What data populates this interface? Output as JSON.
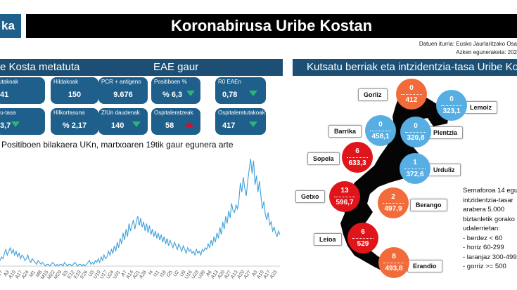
{
  "header": {
    "logo_text": "ka",
    "title": "Koronabirusa Uribe Kostan",
    "source": "Datuen iturria: Eusko Jaurlaritzako Osa",
    "updated": "Azken eguneraketa: 202"
  },
  "left_panel": {
    "title": "e Kosta metatuta",
    "tiles": [
      {
        "label": "utakoak",
        "value": "41"
      },
      {
        "label": "Hildakoak",
        "value": "150"
      },
      {
        "label": "tu-tasa",
        "value": "3,7",
        "trend": "down"
      },
      {
        "label": "Hilkortasuna",
        "value": "% 2,17"
      }
    ]
  },
  "eae_panel": {
    "title": "EAE gaur",
    "tiles": [
      {
        "label": "PCR + antigeno",
        "value": "9.676"
      },
      {
        "label": "Positiboen %",
        "value": "% 6,3",
        "trend": "down"
      },
      {
        "label": "R0 EAEn",
        "value": "0,78",
        "trend": "down"
      },
      {
        "label": "ZIUn daudenak",
        "value": "140",
        "trend": "down"
      },
      {
        "label": "Ospitaleratzeak",
        "value": "58",
        "trend": "up"
      },
      {
        "label": "Ospitaleratutakoak",
        "value": "417",
        "trend": "down"
      }
    ]
  },
  "chart_data": {
    "type": "line",
    "title": "Positiboen bilakaera UKn, martxoaren 19tik gaur egunera arte",
    "xlabel": "",
    "ylabel": "",
    "ylim": [
      0,
      60
    ],
    "color": "#3fa0d9",
    "x_ticks": [
      "M27",
      "A3",
      "A10",
      "A17",
      "A24",
      "M1",
      "M8",
      "M15",
      "M22",
      "M29",
      "E5",
      "E12",
      "E19",
      "E26",
      "U3",
      "U10",
      "U17",
      "U24",
      "U31",
      "A7",
      "A14",
      "A21",
      "A28",
      "I4",
      "I11",
      "I18",
      "I25",
      "U2",
      "U9",
      "U16",
      "U23",
      "U30",
      "A6",
      "A13",
      "A20",
      "A27",
      "A13",
      "A20",
      "A27",
      "A3",
      "A10",
      "A17",
      "A23"
    ],
    "values": [
      3,
      5,
      4,
      7,
      9,
      6,
      8,
      10,
      7,
      9,
      6,
      8,
      5,
      7,
      4,
      6,
      5,
      3,
      4,
      6,
      3,
      2,
      4,
      3,
      2,
      1,
      3,
      2,
      1,
      2,
      1,
      0,
      1,
      1,
      0,
      1,
      2,
      1,
      0,
      1,
      0,
      1,
      1,
      0,
      2,
      1,
      0,
      1,
      1,
      0,
      1,
      2,
      1,
      0,
      1,
      1,
      0,
      1,
      0,
      1,
      2,
      3,
      1,
      2,
      1,
      3,
      2,
      4,
      2,
      5,
      3,
      6,
      4,
      5,
      8,
      6,
      9,
      7,
      11,
      8,
      13,
      10,
      15,
      12,
      18,
      14,
      20,
      16,
      23,
      19,
      22,
      25,
      20,
      24,
      27,
      22,
      26,
      21,
      24,
      19,
      23,
      18,
      22,
      17,
      20,
      16,
      19,
      15,
      18,
      14,
      17,
      13,
      16,
      12,
      15,
      11,
      14,
      12,
      10,
      13,
      11,
      9,
      12,
      10,
      8,
      11,
      9,
      7,
      10,
      8,
      9,
      7,
      8,
      6,
      9,
      7,
      8,
      6,
      9,
      8,
      10,
      9,
      12,
      10,
      14,
      11,
      16,
      13,
      18,
      15,
      21,
      17,
      24,
      20,
      27,
      23,
      30,
      26,
      34,
      30,
      29,
      33,
      31,
      36,
      45,
      40,
      48,
      42,
      38,
      46,
      52,
      58,
      50,
      57,
      44,
      49,
      40,
      46,
      38,
      31,
      35,
      28,
      25,
      29,
      22,
      24,
      19,
      21,
      18,
      16,
      19,
      17
    ]
  },
  "map_panel": {
    "title": "Kutsatu berriak eta intzidentzia-tasa Uribe Ko",
    "towns": [
      {
        "name": "Gorliz",
        "new_cases": "0",
        "rate": "412",
        "color": "#f26b3a"
      },
      {
        "name": "Lemoiz",
        "new_cases": "0",
        "rate": "323,1",
        "color": "#56aee3"
      },
      {
        "name": "Barrika",
        "new_cases": "0",
        "rate": "458,1",
        "color": "#56aee3"
      },
      {
        "name": "Plentzia",
        "new_cases": "0",
        "rate": "320,8",
        "color": "#56aee3"
      },
      {
        "name": "Sopela",
        "new_cases": "6",
        "rate": "633,3",
        "color": "#e0151b"
      },
      {
        "name": "Urduliz",
        "new_cases": "1",
        "rate": "372,6",
        "color": "#56aee3"
      },
      {
        "name": "Getxo",
        "new_cases": "13",
        "rate": "596,7",
        "color": "#e0151b"
      },
      {
        "name": "Berango",
        "new_cases": "2",
        "rate": "497,9",
        "color": "#f26b3a"
      },
      {
        "name": "Leioa",
        "new_cases": "6",
        "rate": "529",
        "color": "#e0151b"
      },
      {
        "name": "Erandio",
        "new_cases": "8",
        "rate": "493,8",
        "color": "#f26b3a"
      }
    ],
    "legend": [
      "Semaforoa 14 egu",
      "intzidentzia-tasar",
      "arabera 5.000",
      "biztanletik gorako",
      "udalerrietan:",
      "- berdez < 60",
      "- horiz 60-299",
      "- laranjaz 300-499",
      "- gorriz >= 500"
    ]
  }
}
